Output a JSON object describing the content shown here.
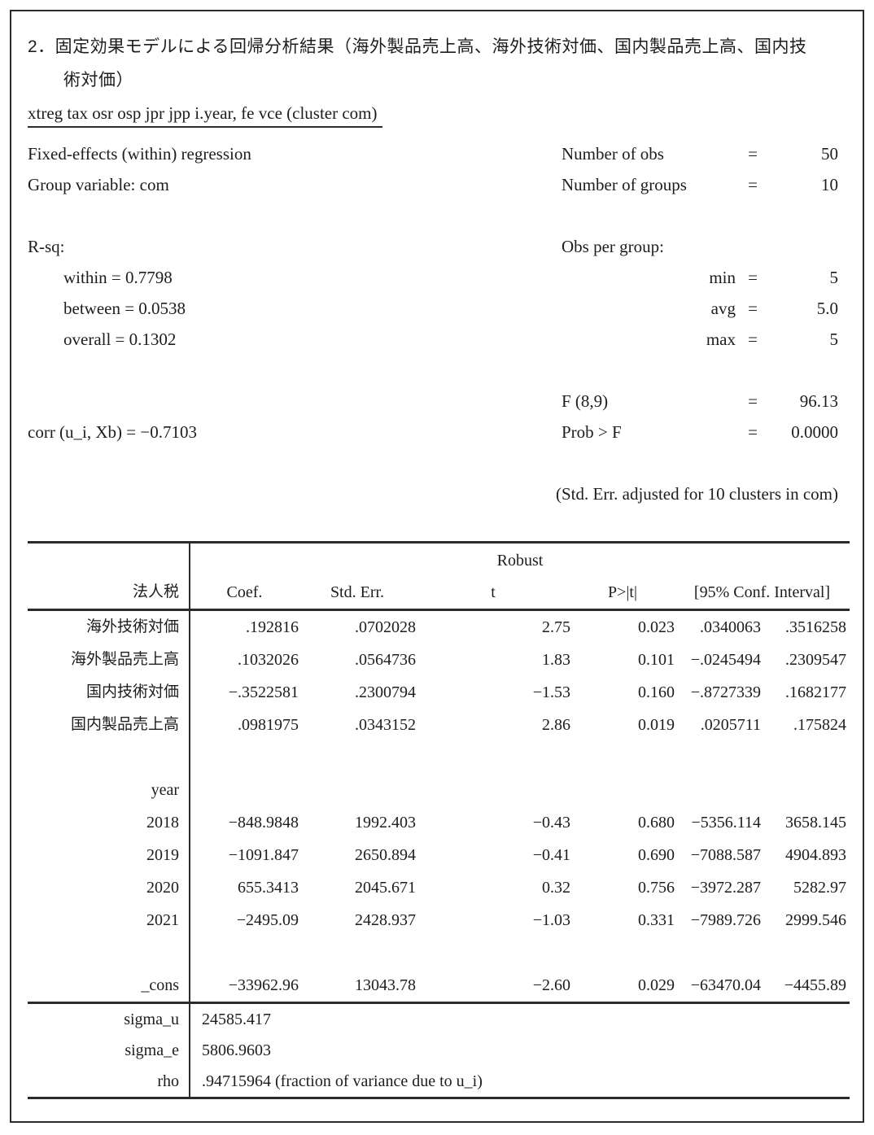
{
  "title": {
    "line1": "2．固定効果モデルによる回帰分析結果（海外製品売上高、海外技術対価、国内製品売上高、国内技",
    "line2": "術対価）"
  },
  "command": "xtreg tax osr osp jpr jpp i.year, fe vce (cluster com)",
  "model_header": {
    "left": {
      "regression_type": "Fixed-effects (within) regression",
      "group_variable": "Group variable: com",
      "rsq_label": "R-sq:",
      "rsq_within": "within = 0.7798",
      "rsq_between": "between = 0.0538",
      "rsq_overall": "overall = 0.1302",
      "corr": "corr (u_i, Xb) = −0.7103"
    },
    "right": {
      "obs": {
        "label": "Number of obs",
        "eq": "=",
        "value": "50"
      },
      "groups": {
        "label": "Number of groups",
        "eq": "=",
        "value": "10"
      },
      "obs_per_group_label": "Obs per group:",
      "min": {
        "label": "min",
        "eq": "=",
        "value": "5"
      },
      "avg": {
        "label": "avg",
        "eq": "=",
        "value": "5.0"
      },
      "max": {
        "label": "max",
        "eq": "=",
        "value": "5"
      },
      "f_test": {
        "label": "F (8,9)",
        "eq": "=",
        "value": "96.13"
      },
      "prob_f": {
        "label": "Prob > F",
        "eq": "=",
        "value": "0.0000"
      }
    },
    "note": "(Std. Err. adjusted for 10 clusters in com)"
  },
  "table": {
    "robust_label": "Robust",
    "stub_header": "法人税",
    "col_coef": "Coef.",
    "col_se": "Std. Err.",
    "col_t": "t",
    "col_p": "P>|t|",
    "ci_header": "[95% Conf. Interval]",
    "rows": [
      {
        "label": "海外技術対価",
        "coef": ".192816",
        "se": ".0702028",
        "t": "2.75",
        "p": "0.023",
        "ci_low": ".0340063",
        "ci_high": ".3516258"
      },
      {
        "label": "海外製品売上高",
        "coef": ".1032026",
        "se": ".0564736",
        "t": "1.83",
        "p": "0.101",
        "ci_low": "−.0245494",
        "ci_high": ".2309547"
      },
      {
        "label": "国内技術対価",
        "coef": "−.3522581",
        "se": ".2300794",
        "t": "−1.53",
        "p": "0.160",
        "ci_low": "−.8727339",
        "ci_high": ".1682177"
      },
      {
        "label": "国内製品売上高",
        "coef": ".0981975",
        "se": ".0343152",
        "t": "2.86",
        "p": "0.019",
        "ci_low": ".0205711",
        "ci_high": ".175824"
      }
    ],
    "year_label": "year",
    "year_rows": [
      {
        "label": "2018",
        "coef": "−848.9848",
        "se": "1992.403",
        "t": "−0.43",
        "p": "0.680",
        "ci_low": "−5356.114",
        "ci_high": "3658.145"
      },
      {
        "label": "2019",
        "coef": "−1091.847",
        "se": "2650.894",
        "t": "−0.41",
        "p": "0.690",
        "ci_low": "−7088.587",
        "ci_high": "4904.893"
      },
      {
        "label": "2020",
        "coef": "655.3413",
        "se": "2045.671",
        "t": "0.32",
        "p": "0.756",
        "ci_low": "−3972.287",
        "ci_high": "5282.97"
      },
      {
        "label": "2021",
        "coef": "−2495.09",
        "se": "2428.937",
        "t": "−1.03",
        "p": "0.331",
        "ci_low": "−7989.726",
        "ci_high": "2999.546"
      }
    ],
    "cons_row": {
      "label": "_cons",
      "coef": "−33962.96",
      "se": "13043.78",
      "t": "−2.60",
      "p": "0.029",
      "ci_low": "−63470.04",
      "ci_high": "−4455.89"
    },
    "sigma_rows": [
      {
        "label": "sigma_u",
        "value": "24585.417"
      },
      {
        "label": "sigma_e",
        "value": "5806.9603"
      },
      {
        "label": "rho",
        "value": ".94715964 (fraction of variance due to u_i)"
      }
    ]
  }
}
